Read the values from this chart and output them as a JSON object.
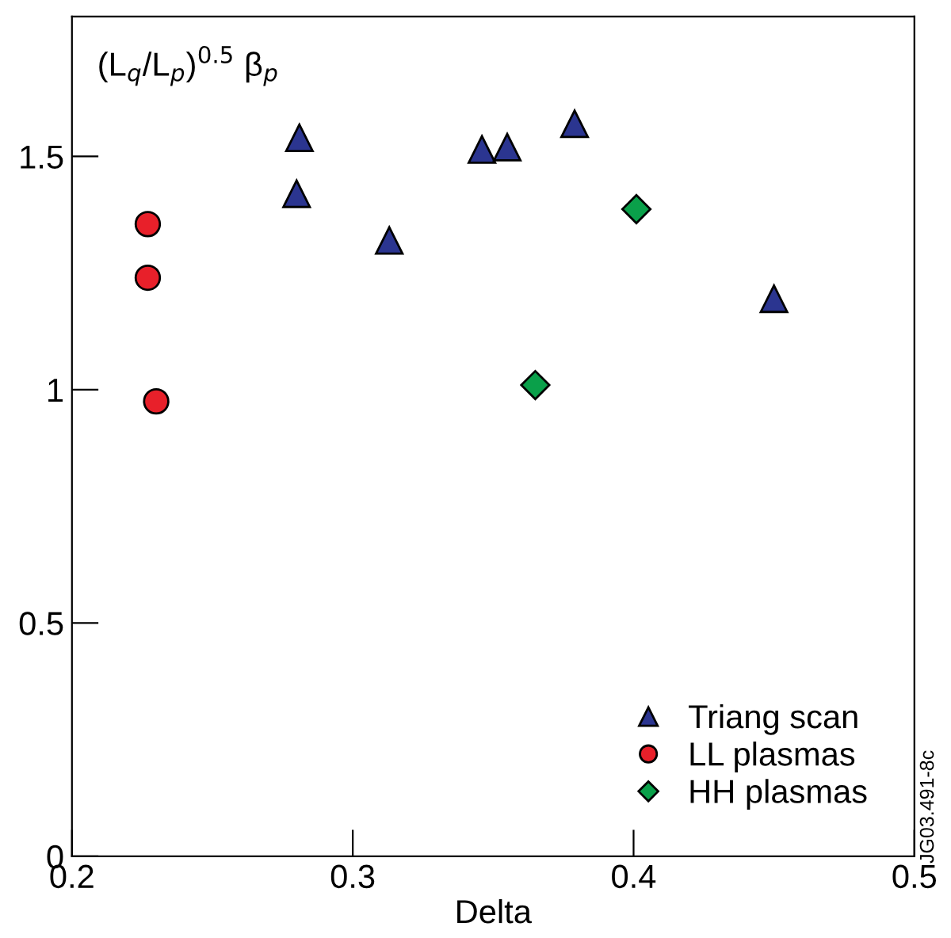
{
  "chart_data": {
    "type": "scatter",
    "xlabel": "Delta",
    "ylabel": "(L$_{q}$/L$_{p}$)$^{0.5}$ β$_{p}$",
    "xlim": [
      0.2,
      0.5
    ],
    "xticks": [
      0.2,
      0.3,
      0.4,
      0.5
    ],
    "ylim": [
      0,
      1.8
    ],
    "yticks": [
      0,
      0.5,
      1,
      1.5
    ],
    "grid": false,
    "legend": "bottom right",
    "annotations": [
      "JG03.491-8c"
    ],
    "series": [
      {
        "name": "Triang scan",
        "color": "#2b3590",
        "marker": "triangle",
        "x": [
          0.281,
          0.28,
          0.313,
          0.346,
          0.355,
          0.379,
          0.45
        ],
        "values": [
          1.54,
          1.42,
          1.32,
          1.515,
          1.52,
          1.57,
          1.195
        ]
      },
      {
        "name": "LL plasmas",
        "color": "#e8202a",
        "marker": "circle",
        "x": [
          0.227,
          0.227,
          0.23
        ],
        "values": [
          1.355,
          1.24,
          0.975
        ]
      },
      {
        "name": "HH plasmas",
        "color": "#0aa04a",
        "marker": "diamond",
        "x": [
          0.365,
          0.401
        ],
        "values": [
          1.01,
          1.387
        ]
      }
    ]
  }
}
